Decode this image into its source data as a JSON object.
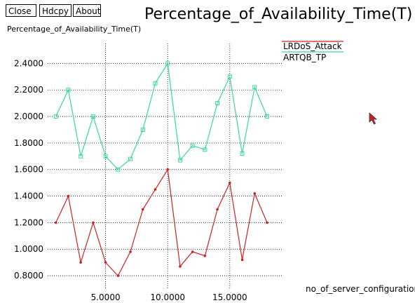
{
  "toolbar": {
    "close_label": "Close",
    "hdcpy_label": "Hdcpy",
    "about_label": "About"
  },
  "chart_data": {
    "type": "line",
    "title": "Percentage_of_Availability_Time(T)",
    "ylabel": "Percentage_of_Availability_Time(T)",
    "xlabel": "no_of_server_configuration",
    "xlim": [
      0,
      19.3
    ],
    "ylim": [
      0.7,
      2.55
    ],
    "x_ticks": [
      5,
      10,
      15
    ],
    "x_tick_labels": [
      "5.0000",
      "10.0000",
      "15.0000"
    ],
    "y_ticks": [
      0.8,
      1.0,
      1.2,
      1.4,
      1.6,
      1.8,
      2.0,
      2.2,
      2.4
    ],
    "y_tick_labels": [
      "0.8000",
      "1.0000",
      "1.2000",
      "1.4000",
      "1.6000",
      "1.8000",
      "2.0000",
      "2.2000",
      "2.4000"
    ],
    "grid": "dotted",
    "legend_position": "top-right",
    "x": [
      1,
      2,
      3,
      4,
      5,
      6,
      7,
      8,
      9,
      10,
      11,
      12,
      13,
      14,
      15,
      16,
      17,
      18
    ],
    "series": [
      {
        "name": "LRDoS_Attack",
        "color": "#cc2222",
        "marker": "dot",
        "values": [
          1.2,
          1.4,
          0.9,
          1.2,
          0.9,
          0.8,
          0.98,
          1.3,
          1.45,
          1.6,
          0.87,
          0.98,
          0.95,
          1.3,
          1.5,
          0.92,
          1.42,
          1.2
        ]
      },
      {
        "name": "ARTQB_TP",
        "color": "#3ad89a",
        "marker": "square",
        "values": [
          2.0,
          2.2,
          1.7,
          2.0,
          1.7,
          1.6,
          1.68,
          1.9,
          2.25,
          2.4,
          1.67,
          1.78,
          1.75,
          2.1,
          2.3,
          1.72,
          2.22,
          2.0
        ]
      }
    ]
  }
}
